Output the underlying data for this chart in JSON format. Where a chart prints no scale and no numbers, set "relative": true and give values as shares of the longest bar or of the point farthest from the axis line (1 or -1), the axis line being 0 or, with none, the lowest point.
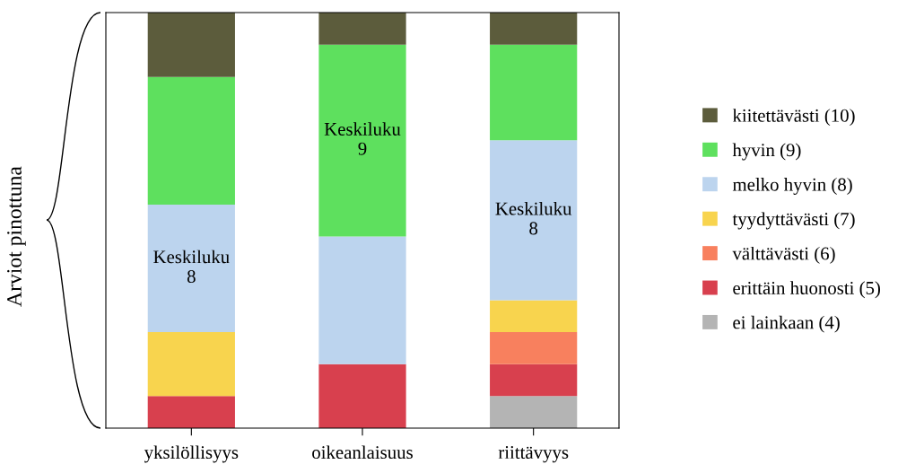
{
  "chart_data": {
    "type": "bar",
    "stacked": true,
    "relative": true,
    "ylabel": "Arviot pinottuna",
    "legend": "right",
    "categories": [
      "yksilöllisyys",
      "oikeanlaisuus",
      "riittävyys"
    ],
    "series": [
      {
        "name": "ei lainkaan (4)",
        "color": "#b4b4b4",
        "values": [
          0,
          0,
          0.077
        ]
      },
      {
        "name": "erittäin huonosti (5)",
        "color": "#d8404e",
        "values": [
          0.077,
          0.154,
          0.077
        ]
      },
      {
        "name": "välttävästi (6)",
        "color": "#f8805e",
        "values": [
          0,
          0,
          0.077
        ]
      },
      {
        "name": "tyydyttävästi (7)",
        "color": "#f8d44e",
        "values": [
          0.154,
          0,
          0.077
        ]
      },
      {
        "name": "melko hyvin (8)",
        "color": "#bcd4ee",
        "values": [
          0.307,
          0.307,
          0.385
        ]
      },
      {
        "name": "hyvin (9)",
        "color": "#5ee05e",
        "values": [
          0.307,
          0.462,
          0.23
        ]
      },
      {
        "name": "kiitettävästi (10)",
        "color": "#5c5c3c",
        "values": [
          0.155,
          0.077,
          0.077
        ]
      }
    ],
    "annotations": [
      "Keskiluku\n8",
      "Keskiluku\n9",
      "Keskiluku\n8"
    ]
  }
}
